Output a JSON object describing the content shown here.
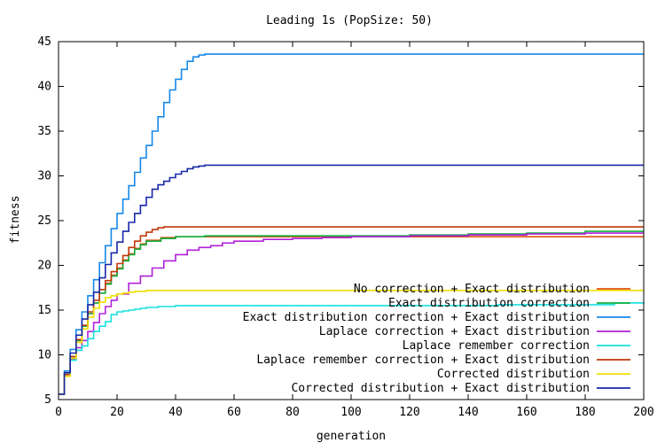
{
  "chart_data": {
    "type": "line",
    "title": "Leading 1s (PopSize: 50)",
    "xlabel": "generation",
    "ylabel": "fitness",
    "xlim": [
      0,
      200
    ],
    "ylim": [
      5,
      45
    ],
    "xticks": [
      0,
      20,
      40,
      60,
      80,
      100,
      120,
      140,
      160,
      180,
      200
    ],
    "yticks": [
      5,
      10,
      15,
      20,
      25,
      30,
      35,
      40,
      45
    ],
    "grid": false,
    "legend_position": "bottom-right",
    "series": [
      {
        "name": "No correction + Exact distribution",
        "color": "#e05010",
        "x": [
          0,
          2,
          4,
          6,
          8,
          10,
          12,
          14,
          16,
          18,
          20,
          22,
          24,
          26,
          28,
          30,
          35,
          40,
          45,
          50,
          60,
          80,
          100,
          150,
          200
        ],
        "y": [
          5.6,
          7.8,
          9.8,
          11.6,
          13.2,
          14.6,
          15.8,
          16.9,
          18.0,
          18.9,
          19.7,
          20.6,
          21.3,
          21.9,
          22.4,
          22.8,
          23.1,
          23.2,
          23.2,
          23.2,
          23.2,
          23.2,
          23.2,
          23.2,
          23.2
        ]
      },
      {
        "name": "Exact distribution correction",
        "color": "#10b040",
        "x": [
          0,
          2,
          4,
          6,
          8,
          10,
          12,
          14,
          16,
          18,
          20,
          22,
          24,
          26,
          28,
          30,
          35,
          40,
          50,
          60,
          80,
          100,
          120,
          140,
          160,
          180,
          200
        ],
        "y": [
          5.6,
          7.8,
          9.8,
          11.6,
          13.2,
          14.6,
          15.8,
          16.9,
          17.9,
          18.8,
          19.6,
          20.5,
          21.2,
          21.8,
          22.3,
          22.7,
          23.0,
          23.2,
          23.3,
          23.3,
          23.3,
          23.3,
          23.4,
          23.5,
          23.6,
          23.8,
          23.8
        ]
      },
      {
        "name": "Exact distribution correction + Exact distribution",
        "color": "#1888e8",
        "x": [
          0,
          2,
          4,
          6,
          8,
          10,
          12,
          14,
          16,
          18,
          20,
          22,
          24,
          26,
          28,
          30,
          32,
          34,
          36,
          38,
          40,
          42,
          44,
          46,
          48,
          50,
          60,
          100,
          150,
          200
        ],
        "y": [
          5.6,
          8.2,
          10.6,
          12.8,
          14.8,
          16.6,
          18.4,
          20.3,
          22.2,
          24.1,
          25.8,
          27.4,
          28.9,
          30.4,
          32.0,
          33.4,
          35.0,
          36.6,
          38.2,
          39.6,
          40.8,
          41.9,
          42.8,
          43.3,
          43.5,
          43.6,
          43.6,
          43.6,
          43.6,
          43.6
        ]
      },
      {
        "name": "Laplace correction + Exact distribution",
        "color": "#b020d8",
        "x": [
          0,
          2,
          4,
          6,
          8,
          10,
          12,
          14,
          16,
          18,
          20,
          24,
          28,
          32,
          36,
          40,
          44,
          48,
          52,
          56,
          60,
          70,
          80,
          90,
          100,
          120,
          140,
          160,
          180,
          200
        ],
        "y": [
          5.6,
          7.6,
          9.5,
          10.8,
          11.6,
          12.6,
          13.6,
          14.6,
          15.4,
          16.1,
          16.8,
          18.0,
          18.8,
          19.7,
          20.5,
          21.2,
          21.7,
          22.0,
          22.2,
          22.5,
          22.7,
          22.9,
          23.0,
          23.1,
          23.2,
          23.3,
          23.4,
          23.5,
          23.6,
          23.6
        ]
      },
      {
        "name": "Laplace remember correction",
        "color": "#18e0e0",
        "x": [
          0,
          2,
          4,
          6,
          8,
          10,
          12,
          14,
          16,
          18,
          20,
          22,
          24,
          26,
          28,
          30,
          34,
          38,
          40,
          60,
          100,
          150,
          190,
          200
        ],
        "y": [
          5.6,
          7.6,
          9.4,
          10.5,
          11.0,
          11.8,
          12.6,
          13.2,
          13.7,
          14.5,
          14.8,
          14.9,
          15.0,
          15.1,
          15.2,
          15.3,
          15.4,
          15.4,
          15.5,
          15.5,
          15.5,
          15.6,
          15.8,
          15.9
        ]
      },
      {
        "name": "Laplace remember correction + Exact distribution",
        "color": "#c03808",
        "x": [
          0,
          2,
          4,
          6,
          8,
          10,
          12,
          14,
          16,
          18,
          20,
          22,
          24,
          26,
          28,
          30,
          32,
          34,
          36,
          40,
          60,
          100,
          150,
          200
        ],
        "y": [
          5.6,
          7.8,
          9.8,
          11.7,
          13.3,
          14.8,
          16.1,
          17.3,
          18.3,
          19.3,
          20.2,
          21.1,
          22.0,
          22.7,
          23.3,
          23.7,
          24.0,
          24.2,
          24.3,
          24.3,
          24.3,
          24.3,
          24.3,
          24.3
        ]
      },
      {
        "name": "Corrected distribution",
        "color": "#f0e000",
        "x": [
          0,
          2,
          4,
          6,
          8,
          10,
          12,
          14,
          16,
          18,
          20,
          22,
          24,
          26,
          28,
          30,
          40,
          60,
          100,
          150,
          200
        ],
        "y": [
          5.6,
          7.6,
          9.6,
          11.4,
          12.9,
          14.2,
          15.2,
          15.9,
          16.4,
          16.6,
          16.8,
          16.9,
          17.0,
          17.1,
          17.1,
          17.2,
          17.2,
          17.2,
          17.2,
          17.2,
          17.2
        ]
      },
      {
        "name": "Corrected distribution + Exact distribution",
        "color": "#1828a8",
        "x": [
          0,
          2,
          4,
          6,
          8,
          10,
          12,
          14,
          16,
          18,
          20,
          22,
          24,
          26,
          28,
          30,
          32,
          34,
          36,
          38,
          40,
          42,
          44,
          46,
          48,
          50,
          60,
          100,
          150,
          200
        ],
        "y": [
          5.6,
          8.0,
          10.2,
          12.2,
          14.0,
          15.6,
          17.0,
          18.6,
          20.1,
          21.4,
          22.6,
          23.8,
          24.8,
          25.8,
          26.7,
          27.6,
          28.5,
          29.0,
          29.4,
          29.8,
          30.2,
          30.5,
          30.8,
          31.0,
          31.1,
          31.2,
          31.2,
          31.2,
          31.2,
          31.2
        ]
      }
    ]
  }
}
